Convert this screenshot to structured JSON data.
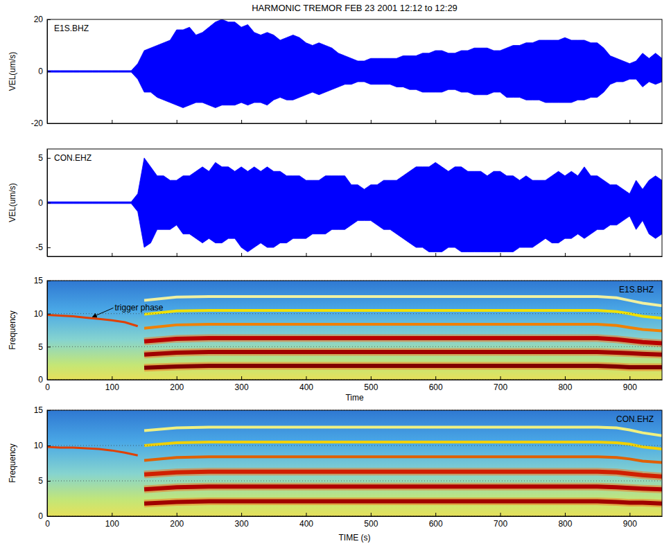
{
  "chart_data": [
    {
      "type": "area",
      "title": "HARMONIC TREMOR FEB 23 2001 12:12 to 12:29",
      "label": "E1S.BHZ",
      "y_label": "VEL(um/s)",
      "x": [
        0,
        10,
        20,
        30,
        40,
        50,
        60,
        70,
        80,
        90,
        100,
        110,
        120,
        130,
        140,
        150,
        160,
        170,
        180,
        190,
        200,
        210,
        220,
        230,
        240,
        250,
        260,
        270,
        280,
        290,
        300,
        310,
        320,
        330,
        340,
        350,
        360,
        370,
        380,
        390,
        400,
        410,
        420,
        430,
        440,
        450,
        460,
        470,
        480,
        490,
        500,
        510,
        520,
        530,
        540,
        550,
        560,
        570,
        580,
        590,
        600,
        610,
        620,
        630,
        640,
        650,
        660,
        670,
        680,
        690,
        700,
        710,
        720,
        730,
        740,
        750,
        760,
        770,
        780,
        790,
        800,
        810,
        820,
        830,
        840,
        850,
        860,
        870,
        880,
        890,
        900,
        910,
        920,
        930,
        940,
        950
      ],
      "series": [
        {
          "color": "#0000ff",
          "values": [
            0.3,
            0.3,
            0.3,
            0.3,
            0.3,
            0.3,
            0.3,
            0.3,
            0.3,
            0.3,
            0.3,
            0.3,
            0.3,
            0.3,
            3,
            8,
            9,
            10,
            11,
            12,
            16,
            16,
            17,
            14,
            15,
            17,
            19,
            20,
            19,
            19,
            17,
            18,
            15,
            14,
            15,
            14,
            12,
            13,
            14,
            13,
            11,
            10,
            11,
            10,
            9,
            7,
            6,
            5,
            4,
            4,
            5,
            5,
            5,
            5,
            5,
            6,
            6,
            6,
            7,
            7,
            8,
            8,
            7,
            7,
            8,
            8,
            9,
            9,
            9,
            8,
            8,
            9,
            10,
            10,
            11,
            11,
            12,
            12,
            12,
            12,
            13,
            12,
            12,
            12,
            11,
            11,
            9,
            6,
            5,
            4,
            3,
            4,
            7,
            5,
            7,
            5
          ]
        },
        {
          "color": "#0000ff",
          "values": [
            -0.3,
            -0.3,
            -0.3,
            -0.3,
            -0.3,
            -0.3,
            -0.3,
            -0.3,
            -0.3,
            -0.3,
            -0.3,
            -0.3,
            -0.3,
            -0.3,
            -3,
            -8,
            -8,
            -10,
            -11,
            -12,
            -13,
            -14,
            -13,
            -12,
            -12,
            -13,
            -14,
            -13,
            -13,
            -13,
            -12,
            -13,
            -12,
            -12,
            -13,
            -11,
            -10,
            -11,
            -11,
            -10,
            -9,
            -8,
            -9,
            -8,
            -7,
            -6,
            -5,
            -5,
            -4,
            -4,
            -5,
            -5,
            -5,
            -5,
            -6,
            -6,
            -7,
            -7,
            -8,
            -8,
            -8,
            -8,
            -7,
            -7,
            -8,
            -8,
            -9,
            -9,
            -9,
            -8,
            -8,
            -10,
            -10,
            -10,
            -11,
            -11,
            -11,
            -12,
            -12,
            -12,
            -12,
            -12,
            -11,
            -11,
            -10,
            -10,
            -8,
            -5,
            -4,
            -4,
            -3,
            -3,
            -6,
            -4,
            -5,
            -4
          ]
        }
      ],
      "xlim": [
        0,
        950
      ],
      "ylim": [
        -20,
        20
      ],
      "xticks": [
        0,
        100,
        200,
        300,
        400,
        500,
        600,
        700,
        800,
        900
      ],
      "yticks": [
        -20,
        0,
        20
      ],
      "tick_labels": "y"
    },
    {
      "type": "area",
      "label": "CON.EHZ",
      "y_label": "VEL(um/s)",
      "x": [
        0,
        10,
        20,
        30,
        40,
        50,
        60,
        70,
        80,
        90,
        100,
        110,
        120,
        130,
        140,
        150,
        160,
        170,
        180,
        190,
        200,
        210,
        220,
        230,
        240,
        250,
        260,
        270,
        280,
        290,
        300,
        310,
        320,
        330,
        340,
        350,
        360,
        370,
        380,
        390,
        400,
        410,
        420,
        430,
        440,
        450,
        460,
        470,
        480,
        490,
        500,
        510,
        520,
        530,
        540,
        550,
        560,
        570,
        580,
        590,
        600,
        610,
        620,
        630,
        640,
        650,
        660,
        670,
        680,
        690,
        700,
        710,
        720,
        730,
        740,
        750,
        760,
        770,
        780,
        790,
        800,
        810,
        820,
        830,
        840,
        850,
        860,
        870,
        880,
        890,
        900,
        910,
        920,
        930,
        940,
        950
      ],
      "series": [
        {
          "color": "#0000ff",
          "values": [
            0.1,
            0.1,
            0.1,
            0.1,
            0.1,
            0.1,
            0.1,
            0.1,
            0.1,
            0.1,
            0.1,
            0.1,
            0.1,
            0.1,
            1,
            5,
            4,
            3,
            3,
            2.5,
            2.5,
            3,
            3,
            3.5,
            4,
            3.5,
            4.5,
            4,
            4,
            3.5,
            4,
            3.5,
            4,
            3.5,
            4,
            3.5,
            3.5,
            3,
            3,
            3,
            2.5,
            2.5,
            2.5,
            3,
            3,
            3,
            3,
            2,
            2,
            1.5,
            2,
            2,
            2.5,
            2.5,
            2.5,
            3,
            3.5,
            4,
            4,
            4,
            4.5,
            4,
            3.5,
            4,
            4,
            3.5,
            3.5,
            3.5,
            3,
            3.5,
            3.5,
            3,
            3,
            2.5,
            3,
            2.5,
            2.5,
            2.5,
            3,
            3.5,
            3,
            3.5,
            3,
            4,
            3,
            3,
            2.5,
            2,
            2,
            1.5,
            1,
            2.5,
            1.5,
            2.5,
            3,
            2.5
          ]
        },
        {
          "color": "#0000ff",
          "values": [
            -0.1,
            -0.1,
            -0.1,
            -0.1,
            -0.1,
            -0.1,
            -0.1,
            -0.1,
            -0.1,
            -0.1,
            -0.1,
            -0.1,
            -0.1,
            -0.1,
            -1,
            -5,
            -4.5,
            -3,
            -3,
            -3,
            -2.5,
            -3.5,
            -3.5,
            -4,
            -4.5,
            -4,
            -4.5,
            -4.5,
            -4,
            -4,
            -5,
            -5.5,
            -5,
            -4.5,
            -5,
            -5,
            -4.5,
            -4.5,
            -4,
            -4,
            -4,
            -3.5,
            -3.5,
            -3.5,
            -3,
            -3,
            -3,
            -2.5,
            -2,
            -2,
            -2,
            -2.5,
            -3,
            -3,
            -3.5,
            -4,
            -4.5,
            -5,
            -5,
            -5.5,
            -5.5,
            -5.5,
            -5,
            -5,
            -5.5,
            -5.5,
            -5.5,
            -5.5,
            -5.5,
            -5.5,
            -5.5,
            -5.5,
            -5.5,
            -5,
            -5,
            -5,
            -4.5,
            -4,
            -4.5,
            -4.5,
            -4,
            -4,
            -3.5,
            -4,
            -3.5,
            -3,
            -3,
            -2.5,
            -2.5,
            -2,
            -1.5,
            -3,
            -2,
            -3.5,
            -4,
            -3.5
          ]
        }
      ],
      "xlim": [
        0,
        950
      ],
      "ylim": [
        -6,
        6
      ],
      "xticks": [
        0,
        100,
        200,
        300,
        400,
        500,
        600,
        700,
        800,
        900
      ],
      "yticks": [
        -5,
        0,
        5
      ],
      "tick_labels": "y"
    },
    {
      "type": "line",
      "label": "E1S.BHZ",
      "x_label": "Time",
      "y_label": "Frequency",
      "x": [
        0,
        20,
        40,
        60,
        80,
        100,
        120,
        140,
        150,
        200,
        250,
        300,
        350,
        400,
        450,
        500,
        550,
        600,
        650,
        700,
        750,
        800,
        850,
        880,
        900,
        920,
        950
      ],
      "series": [
        {
          "color": "#800000",
          "values": [
            null,
            null,
            null,
            null,
            null,
            null,
            null,
            null,
            1.8,
            2.0,
            2.1,
            2.1,
            2.1,
            2.1,
            2.1,
            2.1,
            2.1,
            2.1,
            2.1,
            2.1,
            2.1,
            2.1,
            2.1,
            2.0,
            1.9,
            1.9,
            1.9
          ]
        },
        {
          "color": "#a00000",
          "values": [
            null,
            null,
            null,
            null,
            null,
            null,
            null,
            null,
            3.8,
            4.1,
            4.2,
            4.2,
            4.2,
            4.2,
            4.2,
            4.2,
            4.2,
            4.2,
            4.2,
            4.2,
            4.2,
            4.2,
            4.2,
            4.1,
            4.0,
            3.9,
            3.8
          ]
        },
        {
          "color": "#b80000",
          "values": [
            null,
            null,
            null,
            null,
            null,
            null,
            null,
            null,
            5.8,
            6.2,
            6.3,
            6.3,
            6.3,
            6.3,
            6.3,
            6.3,
            6.3,
            6.3,
            6.3,
            6.3,
            6.3,
            6.3,
            6.3,
            6.1,
            5.9,
            5.7,
            5.5
          ]
        },
        {
          "color": "#f08000",
          "values": [
            null,
            null,
            null,
            null,
            null,
            null,
            null,
            null,
            7.8,
            8.3,
            8.4,
            8.4,
            8.4,
            8.4,
            8.4,
            8.4,
            8.4,
            8.4,
            8.4,
            8.4,
            8.4,
            8.4,
            8.4,
            8.2,
            7.9,
            7.6,
            7.4
          ]
        },
        {
          "color": "#f0e000",
          "values": [
            null,
            null,
            null,
            null,
            null,
            null,
            null,
            null,
            9.9,
            10.4,
            10.5,
            10.5,
            10.5,
            10.5,
            10.5,
            10.5,
            10.5,
            10.5,
            10.5,
            10.5,
            10.5,
            10.5,
            10.5,
            10.3,
            10.0,
            9.6,
            9.3
          ]
        },
        {
          "color": "#f0f0a0",
          "values": [
            null,
            null,
            null,
            null,
            null,
            null,
            null,
            null,
            12.0,
            12.5,
            12.6,
            12.6,
            12.6,
            12.6,
            12.6,
            12.6,
            12.6,
            12.6,
            12.6,
            12.6,
            12.6,
            12.6,
            12.6,
            12.4,
            12.0,
            11.6,
            11.2
          ]
        },
        {
          "color": "#e04000",
          "values": [
            9.8,
            9.7,
            9.6,
            9.4,
            9.2,
            9.0,
            8.7,
            8.1,
            null,
            null,
            null,
            null,
            null,
            null,
            null,
            null,
            null,
            null,
            null,
            null,
            null,
            null,
            null,
            null,
            null,
            null,
            null
          ]
        }
      ],
      "annotations": [
        {
          "text": "trigger phase",
          "x": 68,
          "y": 9.4
        }
      ],
      "xlim": [
        0,
        950
      ],
      "ylim": [
        0,
        15
      ],
      "xticks": [
        0,
        100,
        200,
        300,
        400,
        500,
        600,
        700,
        800,
        900
      ],
      "yticks": [
        0,
        5,
        10,
        15
      ],
      "grid": true
    },
    {
      "type": "line",
      "label": "CON.EHZ",
      "x_label": "TIME (s)",
      "y_label": "Frequency",
      "x": [
        0,
        20,
        40,
        60,
        80,
        100,
        120,
        140,
        150,
        200,
        250,
        300,
        350,
        400,
        450,
        500,
        550,
        600,
        650,
        700,
        750,
        800,
        850,
        880,
        900,
        920,
        950
      ],
      "series": [
        {
          "color": "#a00000",
          "values": [
            null,
            null,
            null,
            null,
            null,
            null,
            null,
            null,
            1.8,
            2.0,
            2.1,
            2.1,
            2.1,
            2.1,
            2.1,
            2.1,
            2.1,
            2.1,
            2.1,
            2.1,
            2.1,
            2.1,
            2.1,
            2.0,
            1.9,
            1.9,
            1.8
          ]
        },
        {
          "color": "#b00000",
          "values": [
            null,
            null,
            null,
            null,
            null,
            null,
            null,
            null,
            3.8,
            4.1,
            4.2,
            4.2,
            4.2,
            4.2,
            4.2,
            4.2,
            4.2,
            4.2,
            4.2,
            4.2,
            4.2,
            4.2,
            4.2,
            4.1,
            4.0,
            3.9,
            3.8
          ]
        },
        {
          "color": "#d02000",
          "values": [
            null,
            null,
            null,
            null,
            null,
            null,
            null,
            null,
            5.9,
            6.2,
            6.3,
            6.3,
            6.3,
            6.3,
            6.3,
            6.3,
            6.3,
            6.3,
            6.3,
            6.3,
            6.3,
            6.3,
            6.3,
            6.2,
            6.0,
            5.8,
            5.6
          ]
        },
        {
          "color": "#e06000",
          "values": [
            null,
            null,
            null,
            null,
            null,
            null,
            null,
            null,
            7.9,
            8.3,
            8.4,
            8.4,
            8.4,
            8.4,
            8.4,
            8.4,
            8.4,
            8.4,
            8.4,
            8.4,
            8.4,
            8.4,
            8.4,
            8.3,
            8.1,
            7.8,
            7.6
          ]
        },
        {
          "color": "#f0d000",
          "values": [
            null,
            null,
            null,
            null,
            null,
            null,
            null,
            null,
            10.0,
            10.4,
            10.5,
            10.5,
            10.5,
            10.5,
            10.5,
            10.5,
            10.5,
            10.5,
            10.5,
            10.5,
            10.5,
            10.5,
            10.5,
            10.4,
            10.2,
            9.8,
            9.5
          ]
        },
        {
          "color": "#f0f080",
          "values": [
            null,
            null,
            null,
            null,
            null,
            null,
            null,
            null,
            12.1,
            12.5,
            12.6,
            12.6,
            12.6,
            12.6,
            12.6,
            12.6,
            12.6,
            12.6,
            12.6,
            12.6,
            12.6,
            12.6,
            12.6,
            12.5,
            12.2,
            11.8,
            11.4
          ]
        },
        {
          "color": "#e04000",
          "values": [
            9.8,
            9.7,
            9.7,
            9.6,
            9.5,
            9.3,
            9.0,
            8.6,
            null,
            null,
            null,
            null,
            null,
            null,
            null,
            null,
            null,
            null,
            null,
            null,
            null,
            null,
            null,
            null,
            null,
            null,
            null
          ]
        }
      ],
      "xlim": [
        0,
        950
      ],
      "ylim": [
        0,
        15
      ],
      "xticks": [
        0,
        100,
        200,
        300,
        400,
        500,
        600,
        700,
        800,
        900
      ],
      "yticks": [
        0,
        5,
        10,
        15
      ],
      "grid": true
    }
  ]
}
